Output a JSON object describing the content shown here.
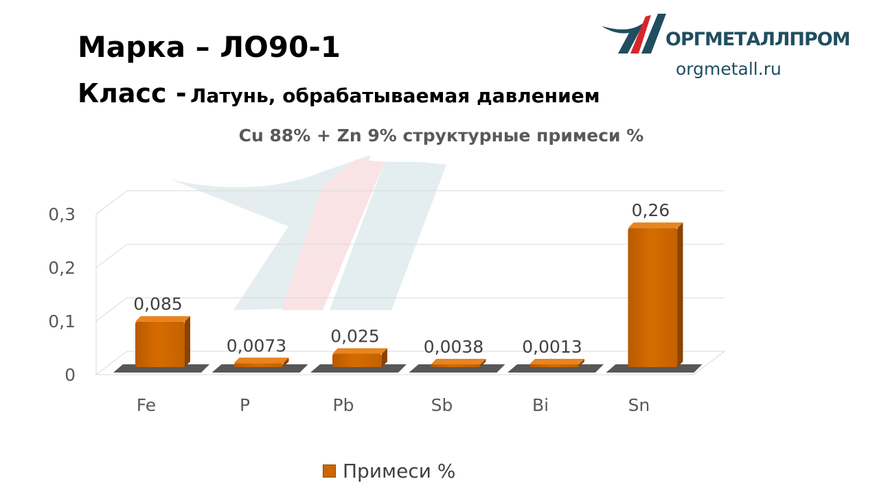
{
  "header": {
    "line1": "Марка – ЛО90-1",
    "line2_label": "Класс -",
    "line2_value": "Латунь, обрабатываемая давлением"
  },
  "logo": {
    "name": "ОРГМЕТАЛЛПРОМ",
    "url": "orgmetall.ru",
    "colors": {
      "red": "#d7252c",
      "teal": "#1f4e5f"
    }
  },
  "chart_data": {
    "type": "bar",
    "title": "Cu 88% + Zn 9% структурные примеси %",
    "categories": [
      "Fe",
      "P",
      "Pb",
      "Sb",
      "Bi",
      "Sn"
    ],
    "series": [
      {
        "name": "Примеси %",
        "values": [
          0.085,
          0.0073,
          0.025,
          0.0038,
          0.0013,
          0.26
        ],
        "labels": [
          "0,085",
          "0,0073",
          "0,025",
          "0,0038",
          "0,0013",
          "0,26"
        ],
        "color": "#cc6600"
      }
    ],
    "y_ticks": [
      "0",
      "0,1",
      "0,2",
      "0,3"
    ],
    "ylim": [
      0,
      0.3
    ],
    "grid": true,
    "style": "3d",
    "legend": "bottom"
  }
}
